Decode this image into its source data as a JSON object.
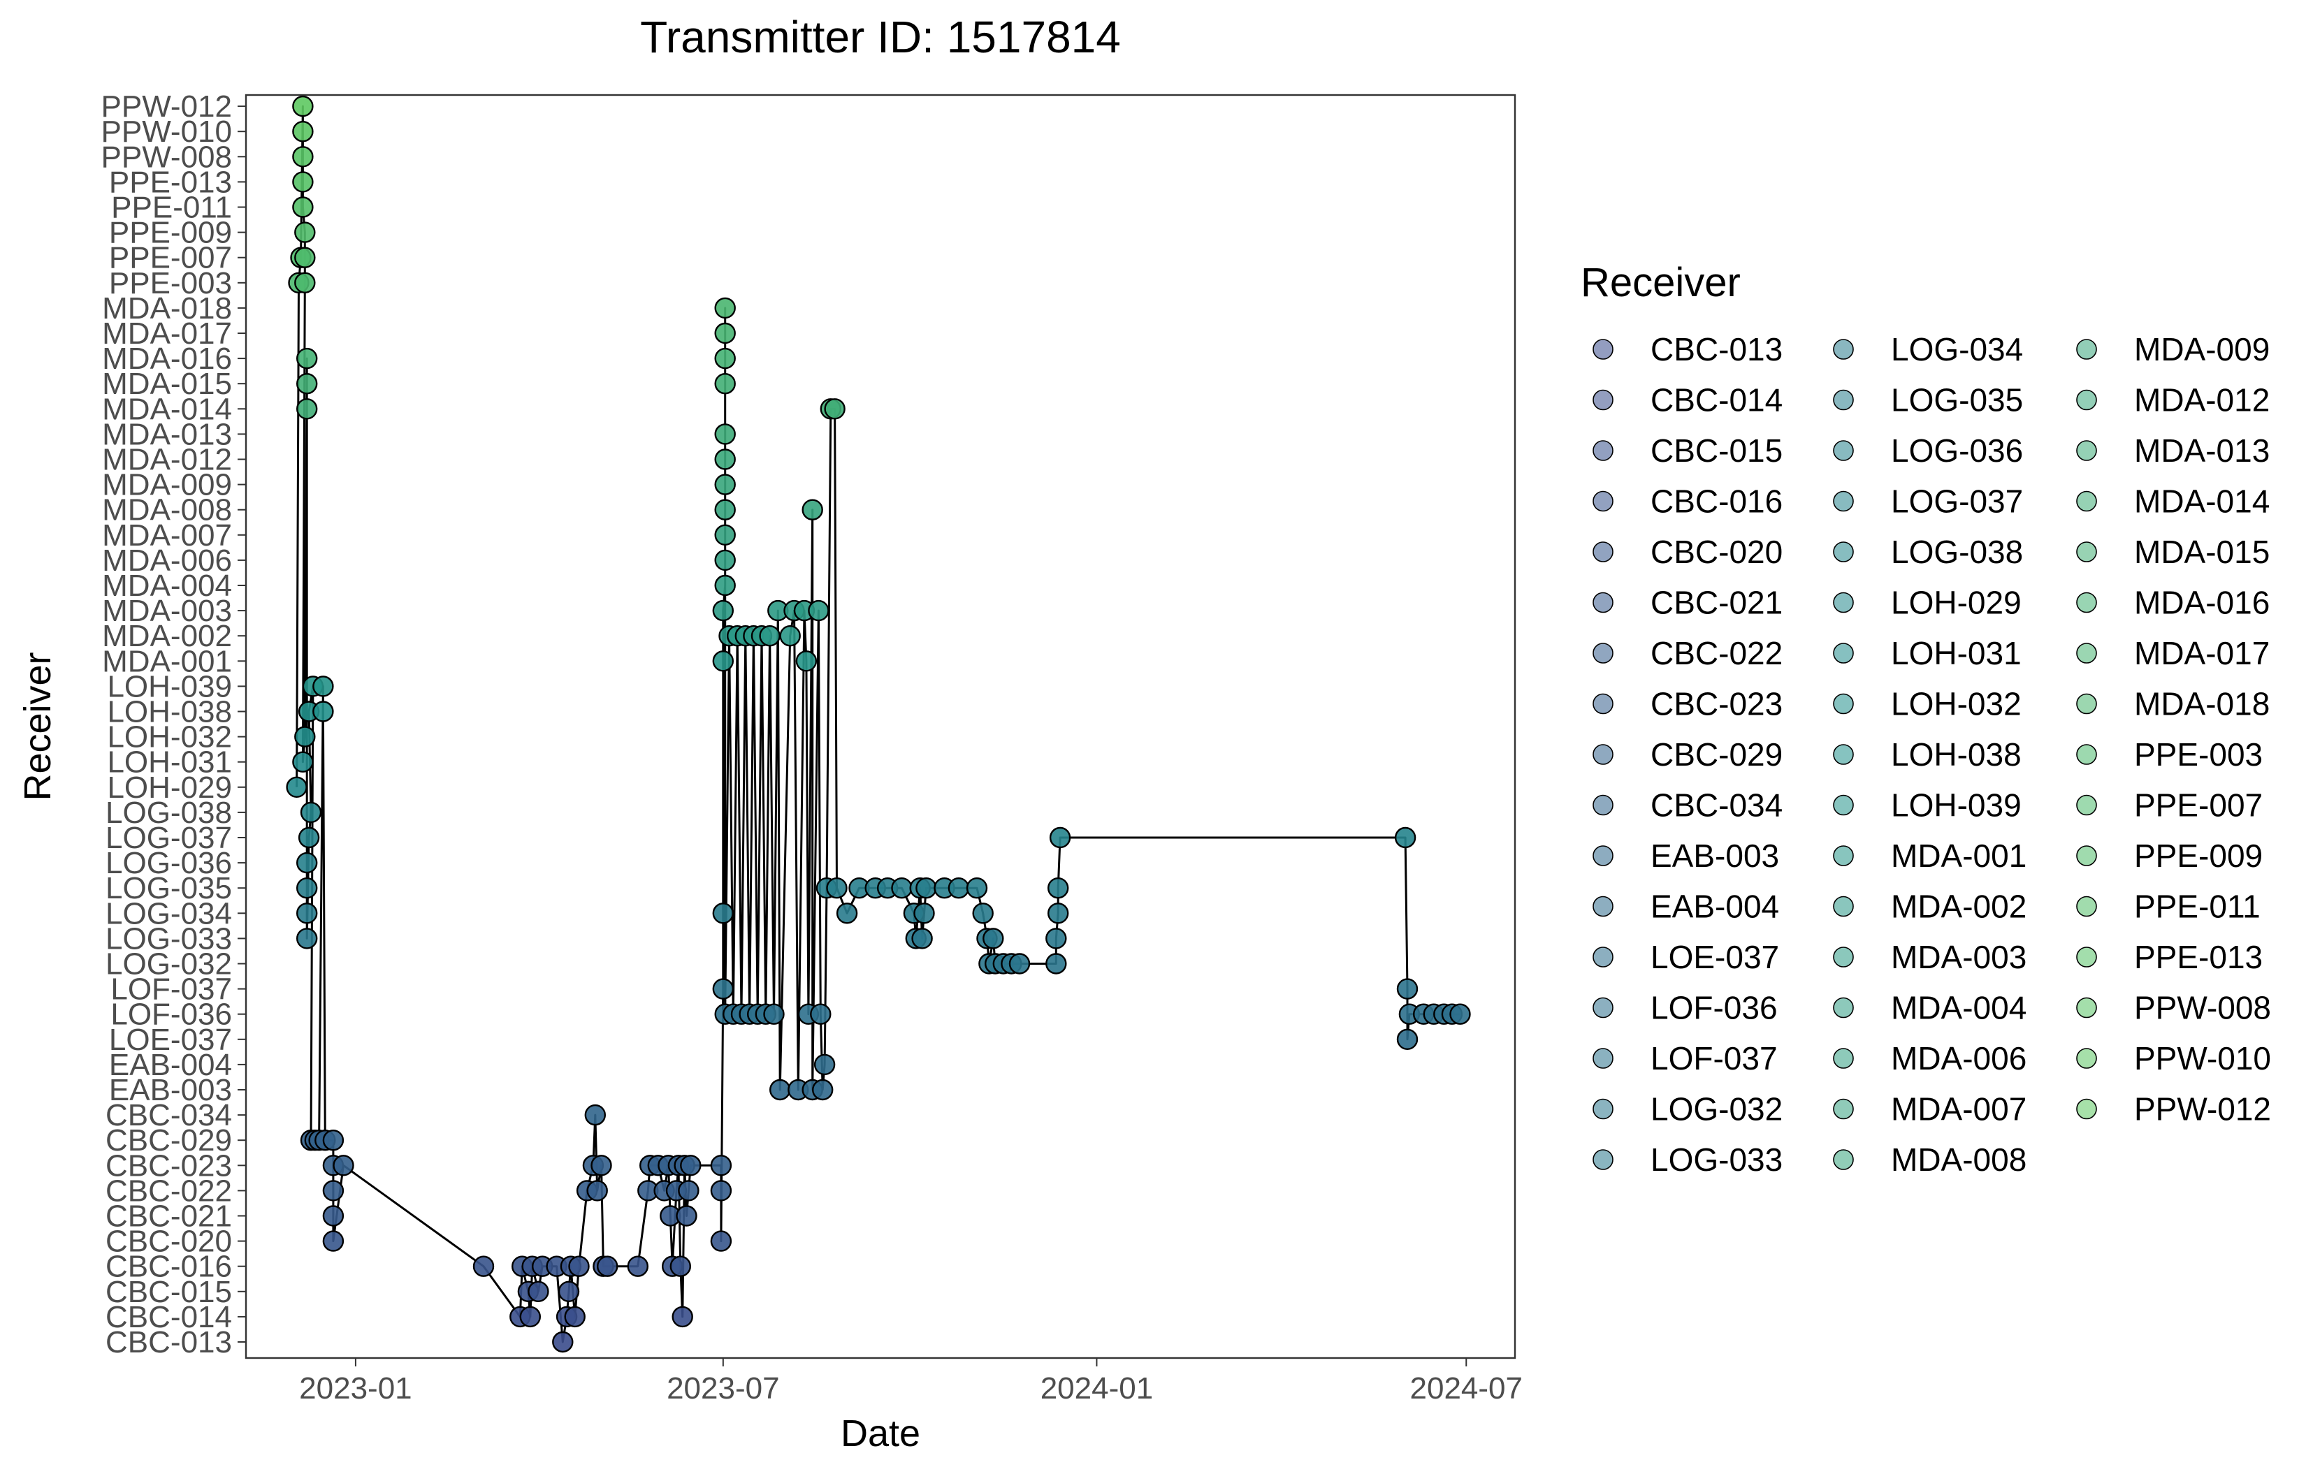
{
  "chart_data": {
    "type": "scatter",
    "title": "Transmitter ID: 1517814",
    "xlabel": "Date",
    "ylabel": "Receiver",
    "x_ticks": [
      "2023-01",
      "2023-07",
      "2024-01",
      "2024-07"
    ],
    "xlim": [
      "2022-11-08",
      "2024-07-25"
    ],
    "legend_title": "Receiver",
    "legend_position": "right",
    "grid": false,
    "receivers": [
      "CBC-013",
      "CBC-014",
      "CBC-015",
      "CBC-016",
      "CBC-020",
      "CBC-021",
      "CBC-022",
      "CBC-023",
      "CBC-029",
      "CBC-034",
      "EAB-003",
      "EAB-004",
      "LOE-037",
      "LOF-036",
      "LOF-037",
      "LOG-032",
      "LOG-033",
      "LOG-034",
      "LOG-035",
      "LOG-036",
      "LOG-037",
      "LOG-038",
      "LOH-029",
      "LOH-031",
      "LOH-032",
      "LOH-038",
      "LOH-039",
      "MDA-001",
      "MDA-002",
      "MDA-003",
      "MDA-004",
      "MDA-006",
      "MDA-007",
      "MDA-008",
      "MDA-009",
      "MDA-012",
      "MDA-013",
      "MDA-014",
      "MDA-015",
      "MDA-016",
      "MDA-017",
      "MDA-018",
      "PPE-003",
      "PPE-007",
      "PPE-009",
      "PPE-011",
      "PPE-013",
      "PPW-008",
      "PPW-010",
      "PPW-012"
    ],
    "palette": {
      "start": "#3b4c8c",
      "mid": "#21908d",
      "end": "#5ec962"
    },
    "detections": [
      [
        "2022-12-03",
        "LOH-029"
      ],
      [
        "2022-12-04",
        "PPE-003"
      ],
      [
        "2022-12-05",
        "PPE-007"
      ],
      [
        "2022-12-06",
        "PPW-012"
      ],
      [
        "2022-12-06",
        "PPW-010"
      ],
      [
        "2022-12-06",
        "PPW-008"
      ],
      [
        "2022-12-06",
        "PPE-013"
      ],
      [
        "2022-12-06",
        "PPE-011"
      ],
      [
        "2022-12-07",
        "PPE-009"
      ],
      [
        "2022-12-07",
        "PPE-007"
      ],
      [
        "2022-12-07",
        "PPE-003"
      ],
      [
        "2022-12-06",
        "LOH-031"
      ],
      [
        "2022-12-07",
        "LOH-032"
      ],
      [
        "2022-12-08",
        "MDA-016"
      ],
      [
        "2022-12-08",
        "MDA-015"
      ],
      [
        "2022-12-08",
        "MDA-014"
      ],
      [
        "2022-12-08",
        "LOG-036"
      ],
      [
        "2022-12-08",
        "LOG-035"
      ],
      [
        "2022-12-08",
        "LOG-034"
      ],
      [
        "2022-12-08",
        "LOG-033"
      ],
      [
        "2022-12-09",
        "LOG-037"
      ],
      [
        "2022-12-10",
        "LOG-038"
      ],
      [
        "2022-12-09",
        "LOH-038"
      ],
      [
        "2022-12-11",
        "LOH-039"
      ],
      [
        "2022-12-10",
        "CBC-029"
      ],
      [
        "2022-12-12",
        "CBC-029"
      ],
      [
        "2022-12-14",
        "CBC-029"
      ],
      [
        "2022-12-16",
        "LOH-039"
      ],
      [
        "2022-12-16",
        "LOH-038"
      ],
      [
        "2022-12-17",
        "CBC-029"
      ],
      [
        "2022-12-21",
        "CBC-029"
      ],
      [
        "2022-12-21",
        "CBC-023"
      ],
      [
        "2022-12-21",
        "CBC-022"
      ],
      [
        "2022-12-21",
        "CBC-021"
      ],
      [
        "2022-12-21",
        "CBC-020"
      ],
      [
        "2022-12-26",
        "CBC-023"
      ],
      [
        "2023-03-05",
        "CBC-016"
      ],
      [
        "2023-03-23",
        "CBC-014"
      ],
      [
        "2023-03-24",
        "CBC-016"
      ],
      [
        "2023-03-27",
        "CBC-015"
      ],
      [
        "2023-03-28",
        "CBC-014"
      ],
      [
        "2023-03-29",
        "CBC-016"
      ],
      [
        "2023-04-01",
        "CBC-015"
      ],
      [
        "2023-04-03",
        "CBC-016"
      ],
      [
        "2023-04-10",
        "CBC-016"
      ],
      [
        "2023-04-13",
        "CBC-013"
      ],
      [
        "2023-04-15",
        "CBC-014"
      ],
      [
        "2023-04-16",
        "CBC-015"
      ],
      [
        "2023-04-17",
        "CBC-016"
      ],
      [
        "2023-04-19",
        "CBC-014"
      ],
      [
        "2023-04-21",
        "CBC-016"
      ],
      [
        "2023-04-25",
        "CBC-022"
      ],
      [
        "2023-04-28",
        "CBC-023"
      ],
      [
        "2023-04-29",
        "CBC-034"
      ],
      [
        "2023-04-30",
        "CBC-022"
      ],
      [
        "2023-05-02",
        "CBC-023"
      ],
      [
        "2023-05-03",
        "CBC-016"
      ],
      [
        "2023-05-05",
        "CBC-016"
      ],
      [
        "2023-05-20",
        "CBC-016"
      ],
      [
        "2023-05-25",
        "CBC-022"
      ],
      [
        "2023-05-26",
        "CBC-023"
      ],
      [
        "2023-05-30",
        "CBC-023"
      ],
      [
        "2023-06-02",
        "CBC-022"
      ],
      [
        "2023-06-04",
        "CBC-023"
      ],
      [
        "2023-06-05",
        "CBC-021"
      ],
      [
        "2023-06-06",
        "CBC-016"
      ],
      [
        "2023-06-08",
        "CBC-022"
      ],
      [
        "2023-06-09",
        "CBC-023"
      ],
      [
        "2023-06-10",
        "CBC-016"
      ],
      [
        "2023-06-11",
        "CBC-014"
      ],
      [
        "2023-06-12",
        "CBC-023"
      ],
      [
        "2023-06-13",
        "CBC-021"
      ],
      [
        "2023-06-14",
        "CBC-022"
      ],
      [
        "2023-06-15",
        "CBC-023"
      ],
      [
        "2023-06-30",
        "CBC-023"
      ],
      [
        "2023-06-30",
        "CBC-022"
      ],
      [
        "2023-06-30",
        "CBC-020"
      ],
      [
        "2023-07-01",
        "LOF-037"
      ],
      [
        "2023-07-01",
        "LOG-034"
      ],
      [
        "2023-07-01",
        "MDA-001"
      ],
      [
        "2023-07-01",
        "MDA-003"
      ],
      [
        "2023-07-02",
        "MDA-004"
      ],
      [
        "2023-07-02",
        "MDA-006"
      ],
      [
        "2023-07-02",
        "MDA-007"
      ],
      [
        "2023-07-02",
        "MDA-008"
      ],
      [
        "2023-07-02",
        "MDA-009"
      ],
      [
        "2023-07-02",
        "MDA-012"
      ],
      [
        "2023-07-02",
        "MDA-013"
      ],
      [
        "2023-07-02",
        "MDA-015"
      ],
      [
        "2023-07-02",
        "MDA-016"
      ],
      [
        "2023-07-02",
        "MDA-017"
      ],
      [
        "2023-07-02",
        "MDA-018"
      ],
      [
        "2023-07-02",
        "LOF-036"
      ],
      [
        "2023-07-04",
        "MDA-002"
      ],
      [
        "2023-07-06",
        "LOF-036"
      ],
      [
        "2023-07-08",
        "MDA-002"
      ],
      [
        "2023-07-10",
        "LOF-036"
      ],
      [
        "2023-07-12",
        "MDA-002"
      ],
      [
        "2023-07-14",
        "LOF-036"
      ],
      [
        "2023-07-16",
        "MDA-002"
      ],
      [
        "2023-07-18",
        "LOF-036"
      ],
      [
        "2023-07-20",
        "MDA-002"
      ],
      [
        "2023-07-22",
        "LOF-036"
      ],
      [
        "2023-07-24",
        "MDA-002"
      ],
      [
        "2023-07-26",
        "LOF-036"
      ],
      [
        "2023-07-28",
        "MDA-003"
      ],
      [
        "2023-07-29",
        "EAB-003"
      ],
      [
        "2023-08-03",
        "MDA-002"
      ],
      [
        "2023-08-05",
        "MDA-003"
      ],
      [
        "2023-08-07",
        "EAB-003"
      ],
      [
        "2023-08-10",
        "MDA-003"
      ],
      [
        "2023-08-11",
        "MDA-001"
      ],
      [
        "2023-08-12",
        "LOF-036"
      ],
      [
        "2023-08-14",
        "MDA-008"
      ],
      [
        "2023-08-14",
        "EAB-003"
      ],
      [
        "2023-08-17",
        "MDA-003"
      ],
      [
        "2023-08-18",
        "LOF-036"
      ],
      [
        "2023-08-19",
        "EAB-003"
      ],
      [
        "2023-08-20",
        "EAB-004"
      ],
      [
        "2023-08-21",
        "LOG-035"
      ],
      [
        "2023-08-23",
        "MDA-014"
      ],
      [
        "2023-08-25",
        "MDA-014"
      ],
      [
        "2023-08-26",
        "LOG-035"
      ],
      [
        "2023-08-31",
        "LOG-034"
      ],
      [
        "2023-09-06",
        "LOG-035"
      ],
      [
        "2023-09-14",
        "LOG-035"
      ],
      [
        "2023-09-20",
        "LOG-035"
      ],
      [
        "2023-09-27",
        "LOG-035"
      ],
      [
        "2023-10-03",
        "LOG-034"
      ],
      [
        "2023-10-04",
        "LOG-033"
      ],
      [
        "2023-10-06",
        "LOG-035"
      ],
      [
        "2023-10-07",
        "LOG-033"
      ],
      [
        "2023-10-08",
        "LOG-034"
      ],
      [
        "2023-10-09",
        "LOG-035"
      ],
      [
        "2023-10-18",
        "LOG-035"
      ],
      [
        "2023-10-25",
        "LOG-035"
      ],
      [
        "2023-11-03",
        "LOG-035"
      ],
      [
        "2023-11-06",
        "LOG-034"
      ],
      [
        "2023-11-08",
        "LOG-033"
      ],
      [
        "2023-11-09",
        "LOG-032"
      ],
      [
        "2023-11-11",
        "LOG-033"
      ],
      [
        "2023-11-12",
        "LOG-032"
      ],
      [
        "2023-11-16",
        "LOG-032"
      ],
      [
        "2023-11-20",
        "LOG-032"
      ],
      [
        "2023-11-24",
        "LOG-032"
      ],
      [
        "2023-12-12",
        "LOG-032"
      ],
      [
        "2023-12-12",
        "LOG-033"
      ],
      [
        "2023-12-13",
        "LOG-034"
      ],
      [
        "2023-12-13",
        "LOG-035"
      ],
      [
        "2023-12-14",
        "LOG-037"
      ],
      [
        "2024-06-01",
        "LOG-037"
      ],
      [
        "2024-06-02",
        "LOF-037"
      ],
      [
        "2024-06-02",
        "LOE-037"
      ],
      [
        "2024-06-03",
        "LOF-036"
      ],
      [
        "2024-06-10",
        "LOF-036"
      ],
      [
        "2024-06-15",
        "LOF-036"
      ],
      [
        "2024-06-20",
        "LOF-036"
      ],
      [
        "2024-06-24",
        "LOF-036"
      ],
      [
        "2024-06-28",
        "LOF-036"
      ]
    ]
  }
}
